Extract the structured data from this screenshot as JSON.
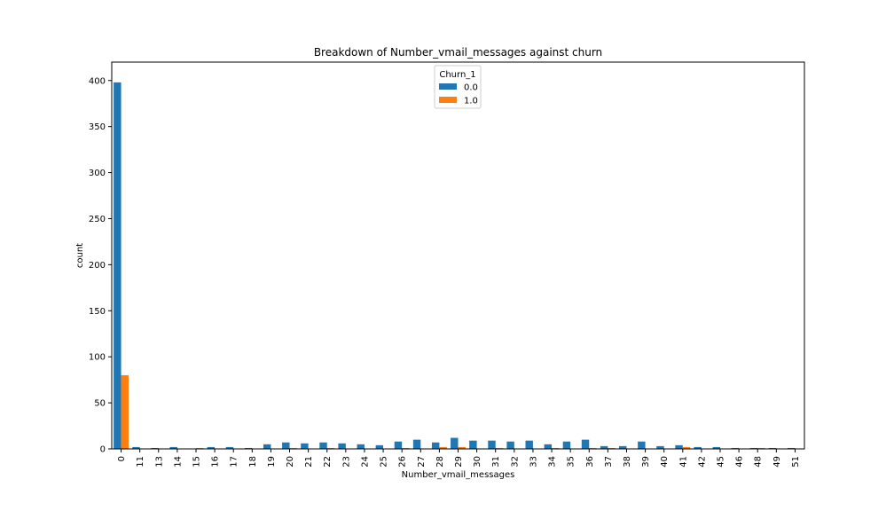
{
  "chart_data": {
    "type": "bar",
    "title": "Breakdown of Number_vmail_messages against churn",
    "xlabel": "Number_vmail_messages",
    "ylabel": "count",
    "ylim": [
      0,
      420
    ],
    "yticks": [
      0,
      50,
      100,
      150,
      200,
      250,
      300,
      350,
      400
    ],
    "grid": false,
    "legend_title": "Churn_1",
    "legend_position": "upper-center",
    "categories": [
      "0",
      "11",
      "13",
      "14",
      "15",
      "16",
      "17",
      "18",
      "19",
      "20",
      "21",
      "22",
      "23",
      "24",
      "25",
      "26",
      "27",
      "28",
      "29",
      "30",
      "31",
      "32",
      "33",
      "34",
      "35",
      "36",
      "37",
      "38",
      "39",
      "40",
      "41",
      "42",
      "45",
      "46",
      "48",
      "49",
      "51"
    ],
    "series": [
      {
        "name": "0.0",
        "color": "#1f77b4",
        "values": [
          398,
          2,
          1,
          2,
          0,
          2,
          2,
          1,
          5,
          7,
          6,
          7,
          6,
          5,
          4,
          8,
          10,
          7,
          12,
          9,
          9,
          8,
          9,
          5,
          8,
          10,
          3,
          3,
          8,
          3,
          4,
          2,
          2,
          1,
          1,
          1,
          1
        ]
      },
      {
        "name": "1.0",
        "color": "#ff7f0e",
        "values": [
          80,
          0,
          0,
          0,
          1,
          0,
          0,
          0,
          0,
          1,
          0,
          1,
          0,
          0,
          0,
          1,
          0,
          2,
          2,
          0,
          1,
          0,
          0,
          1,
          0,
          1,
          1,
          0,
          0,
          0,
          2,
          0,
          0,
          0,
          1,
          0,
          0
        ]
      }
    ]
  }
}
